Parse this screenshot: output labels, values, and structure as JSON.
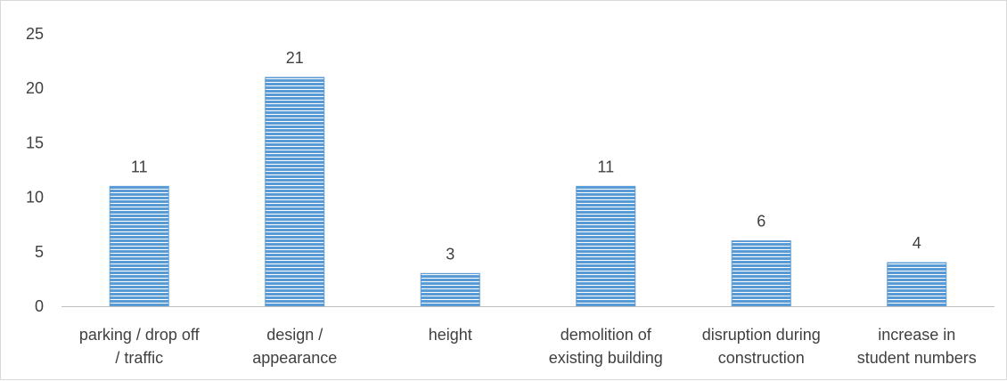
{
  "chart_data": {
    "type": "bar",
    "categories": [
      [
        "parking / drop off",
        "/ traffic"
      ],
      [
        "design /",
        "appearance"
      ],
      [
        "height"
      ],
      [
        "demolition of",
        "existing building"
      ],
      [
        "disruption during",
        "construction"
      ],
      [
        "increase in",
        "student numbers"
      ]
    ],
    "values": [
      11,
      21,
      3,
      11,
      6,
      4
    ],
    "title": "",
    "xlabel": "",
    "ylabel": "",
    "ylim": [
      0,
      25
    ],
    "yticks": [
      0,
      5,
      10,
      15,
      20,
      25
    ],
    "grid": false,
    "legend": "none",
    "data_labels": true,
    "bar_color": "#5b9bd5",
    "bar_stripe_color": "#ffffff",
    "axis_color": "#bfbfbf",
    "text_color": "#404040"
  }
}
